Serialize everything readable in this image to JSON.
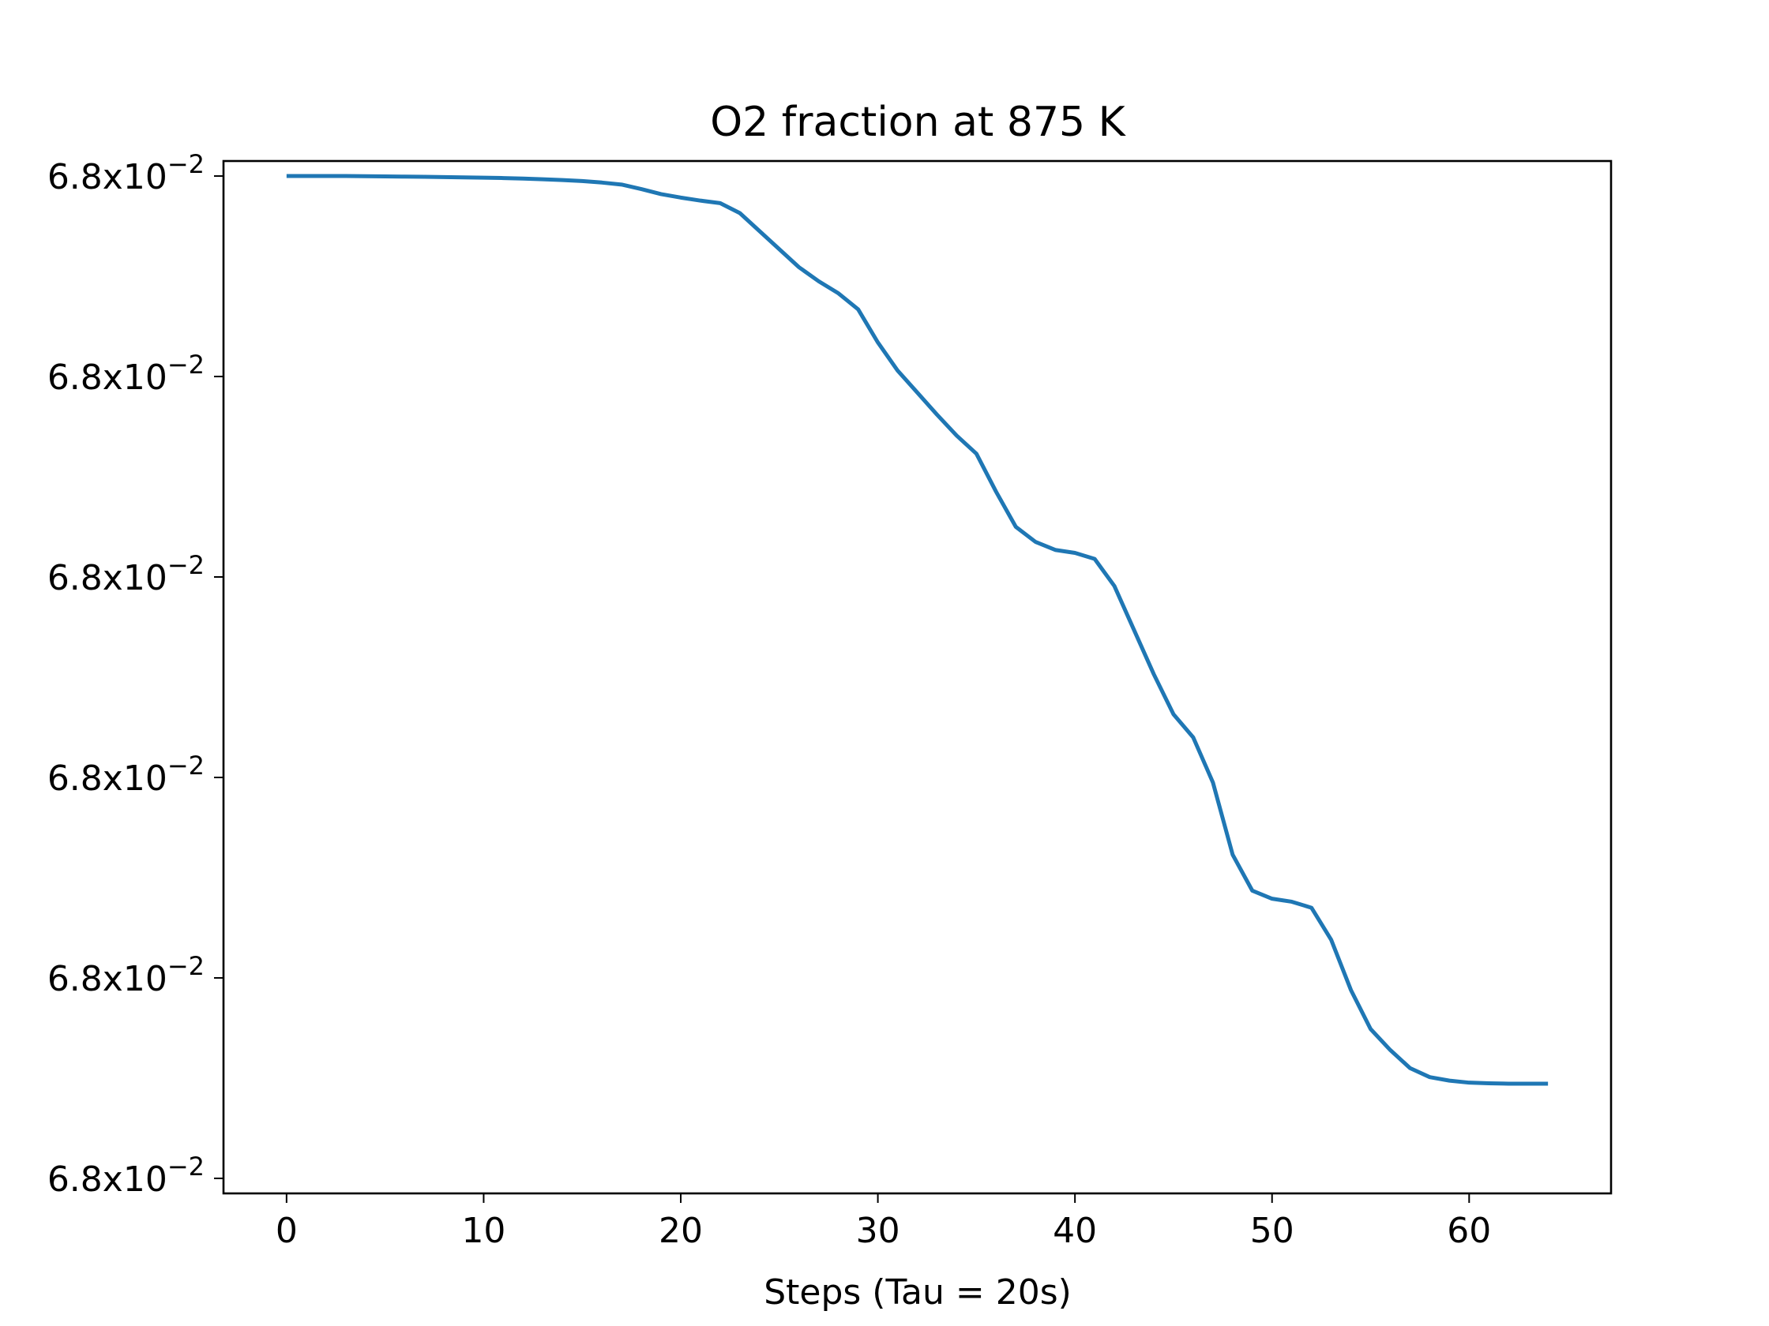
{
  "chart_data": {
    "type": "line",
    "title": "O2 fraction at 875 K",
    "xlabel": "Steps (Tau = 20s)",
    "ylabel": "",
    "xlim": [
      -3.2,
      67.2
    ],
    "ylim": [
      -0.015,
      1.015
    ],
    "xticks": [
      0,
      10,
      20,
      30,
      40,
      50,
      60
    ],
    "xtick_labels": [
      "0",
      "10",
      "20",
      "30",
      "40",
      "50",
      "60"
    ],
    "yticks": [
      0.0,
      0.2,
      0.4,
      0.6,
      0.8,
      1.0
    ],
    "ytick_labels": [
      {
        "base": "6.8x10",
        "exp": "−2"
      },
      {
        "base": "6.8x10",
        "exp": "−2"
      },
      {
        "base": "6.8x10",
        "exp": "−2"
      },
      {
        "base": "6.8x10",
        "exp": "−2"
      },
      {
        "base": "6.8x10",
        "exp": "−2"
      },
      {
        "base": "6.8x10",
        "exp": "−2"
      }
    ],
    "line_color": "#1f77b4",
    "grid": false,
    "series": [
      {
        "x": [
          0,
          1,
          2,
          3,
          4,
          5,
          6,
          7,
          8,
          9,
          10,
          11,
          12,
          13,
          14,
          15,
          16,
          17,
          18,
          19,
          20,
          21,
          22,
          23,
          24,
          25,
          26,
          27,
          28,
          29,
          30,
          31,
          32,
          33,
          34,
          35,
          36,
          37,
          38,
          39,
          40,
          41,
          42,
          43,
          44,
          45,
          46,
          47,
          48,
          49,
          50,
          51,
          52,
          53,
          54,
          55,
          56,
          57,
          58,
          59,
          60,
          61,
          62,
          63,
          64
        ],
        "values": [
          1.0,
          1.0,
          1.0,
          1.0,
          0.9998,
          0.9996,
          0.9994,
          0.9992,
          0.999,
          0.9987,
          0.9984,
          0.998,
          0.9975,
          0.9968,
          0.996,
          0.995,
          0.9935,
          0.9915,
          0.987,
          0.982,
          0.9785,
          0.9755,
          0.973,
          0.963,
          0.945,
          0.927,
          0.909,
          0.895,
          0.883,
          0.867,
          0.834,
          0.806,
          0.784,
          0.762,
          0.741,
          0.723,
          0.685,
          0.65,
          0.635,
          0.627,
          0.624,
          0.618,
          0.591,
          0.547,
          0.503,
          0.463,
          0.44,
          0.395,
          0.323,
          0.287,
          0.279,
          0.276,
          0.27,
          0.238,
          0.188,
          0.149,
          0.128,
          0.11,
          0.101,
          0.0975,
          0.0955,
          0.0948,
          0.0945,
          0.0945,
          0.0945
        ]
      }
    ]
  }
}
